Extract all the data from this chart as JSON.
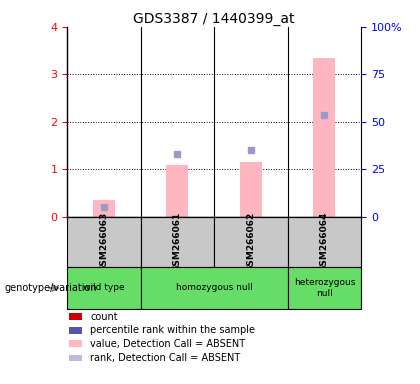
{
  "title": "GDS3387 / 1440399_at",
  "samples": [
    "GSM266063",
    "GSM266061",
    "GSM266062",
    "GSM266064"
  ],
  "pink_bar_values": [
    0.35,
    1.1,
    1.15,
    3.35
  ],
  "blue_square_values": [
    0.22,
    1.32,
    1.4,
    2.15
  ],
  "ylim_left": [
    0,
    4
  ],
  "ylim_right": [
    0,
    100
  ],
  "yticks_left": [
    0,
    1,
    2,
    3,
    4
  ],
  "yticks_right": [
    0,
    25,
    50,
    75,
    100
  ],
  "ytick_labels_right": [
    "0",
    "25",
    "50",
    "75",
    "100%"
  ],
  "bar_color_pink": "#FFB6C1",
  "square_color_blue": "#9999CC",
  "sample_bg_color": "#C8C8C8",
  "geno_bg_color": "#66DD66",
  "legend_items": [
    {
      "color": "#CC0000",
      "label": "count"
    },
    {
      "color": "#5555AA",
      "label": "percentile rank within the sample"
    },
    {
      "color": "#FFB6C1",
      "label": "value, Detection Call = ABSENT"
    },
    {
      "color": "#BBBBDD",
      "label": "rank, Detection Call = ABSENT"
    }
  ],
  "geno_groups": [
    {
      "start": 0,
      "end": 0,
      "label": "wild type"
    },
    {
      "start": 1,
      "end": 2,
      "label": "homozygous null"
    },
    {
      "start": 3,
      "end": 3,
      "label": "heterozygous\nnull"
    }
  ],
  "genotype_label": "genotype/variation",
  "title_fontsize": 10,
  "tick_fontsize": 8,
  "bar_width": 0.3
}
